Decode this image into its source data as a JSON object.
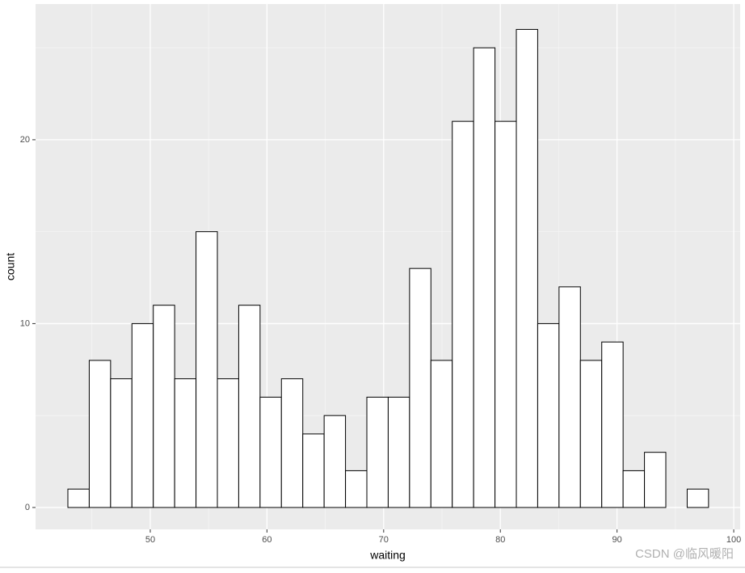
{
  "chart_data": {
    "type": "histogram",
    "x_label": "waiting",
    "y_label": "count",
    "bins": [
      42.94,
      44.77,
      46.6,
      48.43,
      50.26,
      52.09,
      53.92,
      55.75,
      57.58,
      59.41,
      61.24,
      63.07,
      64.9,
      66.73,
      68.56,
      70.39,
      72.22,
      74.05,
      75.88,
      77.71,
      79.54,
      81.37,
      83.2,
      85.03,
      86.86,
      88.69,
      90.52,
      92.35,
      94.18,
      96.01,
      97.84
    ],
    "values": [
      1,
      8,
      7,
      10,
      11,
      7,
      15,
      7,
      11,
      6,
      7,
      4,
      5,
      2,
      6,
      6,
      13,
      8,
      21,
      25,
      21,
      26,
      10,
      12,
      8,
      9,
      2,
      3,
      0,
      1
    ],
    "color": "#ffffff",
    "edge_color": "#000000",
    "xlim": [
      40.17,
      100.55
    ],
    "ylim": [
      -1.19,
      27.38
    ],
    "xticks": [
      50,
      60,
      70,
      80,
      90,
      100
    ],
    "yticks": [
      0,
      10,
      20
    ],
    "grid": true,
    "minor_grid": true,
    "watermark": "CSDN @临风暖阳"
  }
}
